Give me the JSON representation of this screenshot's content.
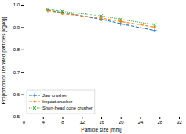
{
  "chart_data": {
    "type": "line",
    "xlabel": "Particle size [mm]",
    "ylabel": "Proportion of liberated particles [kg/kg]",
    "x": [
      5,
      8,
      16,
      20,
      27
    ],
    "series": [
      {
        "name": "Jaw crusher",
        "line_style": "dashed",
        "marker": "plus",
        "values": [
          0.975,
          0.965,
          0.935,
          0.915,
          0.885
        ]
      },
      {
        "name": "Impact crusher",
        "line_style": "dashed",
        "marker": "point",
        "values": [
          0.975,
          0.96,
          0.94,
          0.925,
          0.9
        ]
      },
      {
        "name": "Short-head cone crusher",
        "line_style": "dotted",
        "marker": "x",
        "values": [
          0.98,
          0.97,
          0.95,
          0.935,
          0.91
        ]
      }
    ],
    "xlim": [
      0,
      32
    ],
    "ylim": [
      0.5,
      1.0
    ],
    "xticks": [
      0,
      4,
      8,
      12,
      16,
      20,
      24,
      28,
      32
    ],
    "yticks": [
      0.5,
      0.6,
      0.7,
      0.8,
      0.9,
      {
        "value": 1.0,
        "label": "1.0"
      }
    ],
    "grid": false,
    "legend": "lower left"
  }
}
